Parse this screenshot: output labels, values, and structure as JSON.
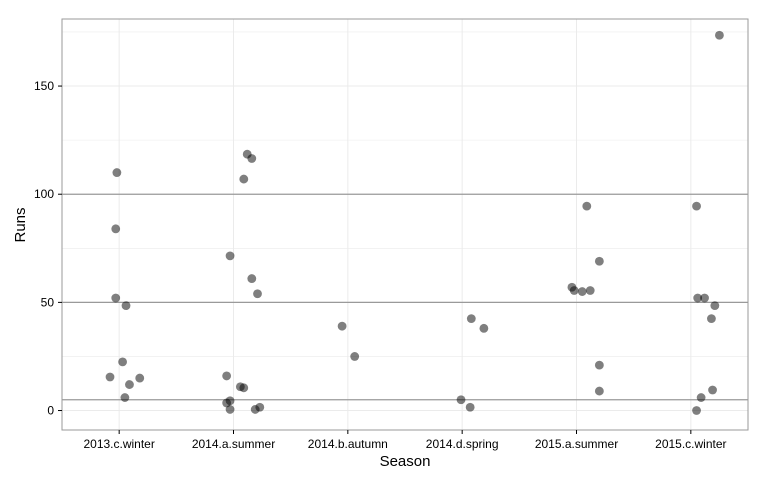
{
  "chart_data": {
    "type": "scatter",
    "title": "",
    "xlabel": "Season",
    "ylabel": "Runs",
    "categories": [
      "2013.c.winter",
      "2014.a.summer",
      "2014.b.autumn",
      "2014.d.spring",
      "2015.a.summer",
      "2015.c.winter"
    ],
    "ylim": [
      -9,
      181
    ],
    "yticks": [
      0,
      50,
      100,
      150
    ],
    "grid": true,
    "legend": "none",
    "reference_lines": [
      5,
      50,
      100
    ],
    "colors": {
      "point": "#000000",
      "point_opacity": 0.5,
      "reference_line": "#9a9a9a",
      "grid": "#ebebeb",
      "panel_border": "#9a9a9a"
    },
    "points": [
      {
        "x": "2013.c.winter",
        "jitter": -0.02,
        "y": 110
      },
      {
        "x": "2013.c.winter",
        "jitter": -0.03,
        "y": 84
      },
      {
        "x": "2013.c.winter",
        "jitter": -0.03,
        "y": 52
      },
      {
        "x": "2013.c.winter",
        "jitter": 0.06,
        "y": 48.5
      },
      {
        "x": "2013.c.winter",
        "jitter": 0.03,
        "y": 22.5
      },
      {
        "x": "2013.c.winter",
        "jitter": -0.08,
        "y": 15.5
      },
      {
        "x": "2013.c.winter",
        "jitter": 0.18,
        "y": 15
      },
      {
        "x": "2013.c.winter",
        "jitter": 0.09,
        "y": 12
      },
      {
        "x": "2013.c.winter",
        "jitter": 0.05,
        "y": 6
      },
      {
        "x": "2014.a.summer",
        "jitter": 0.12,
        "y": 118.5
      },
      {
        "x": "2014.a.summer",
        "jitter": 0.16,
        "y": 116.5
      },
      {
        "x": "2014.a.summer",
        "jitter": 0.09,
        "y": 107
      },
      {
        "x": "2014.a.summer",
        "jitter": -0.03,
        "y": 71.5
      },
      {
        "x": "2014.a.summer",
        "jitter": 0.16,
        "y": 61
      },
      {
        "x": "2014.a.summer",
        "jitter": 0.21,
        "y": 54
      },
      {
        "x": "2014.a.summer",
        "jitter": -0.06,
        "y": 16
      },
      {
        "x": "2014.a.summer",
        "jitter": 0.06,
        "y": 11
      },
      {
        "x": "2014.a.summer",
        "jitter": 0.09,
        "y": 10.5
      },
      {
        "x": "2014.a.summer",
        "jitter": -0.03,
        "y": 4.5
      },
      {
        "x": "2014.a.summer",
        "jitter": -0.06,
        "y": 3.5
      },
      {
        "x": "2014.a.summer",
        "jitter": 0.23,
        "y": 1.5
      },
      {
        "x": "2014.a.summer",
        "jitter": 0.19,
        "y": 0.5
      },
      {
        "x": "2014.a.summer",
        "jitter": -0.03,
        "y": 0.5
      },
      {
        "x": "2014.b.autumn",
        "jitter": -0.05,
        "y": 39
      },
      {
        "x": "2014.b.autumn",
        "jitter": 0.06,
        "y": 25
      },
      {
        "x": "2014.d.spring",
        "jitter": 0.08,
        "y": 42.5
      },
      {
        "x": "2014.d.spring",
        "jitter": 0.19,
        "y": 38
      },
      {
        "x": "2014.d.spring",
        "jitter": -0.01,
        "y": 5
      },
      {
        "x": "2014.d.spring",
        "jitter": 0.07,
        "y": 1.5
      },
      {
        "x": "2015.a.summer",
        "jitter": 0.09,
        "y": 94.5
      },
      {
        "x": "2015.a.summer",
        "jitter": 0.2,
        "y": 69
      },
      {
        "x": "2015.a.summer",
        "jitter": -0.04,
        "y": 57
      },
      {
        "x": "2015.a.summer",
        "jitter": -0.02,
        "y": 55.5
      },
      {
        "x": "2015.a.summer",
        "jitter": 0.05,
        "y": 55
      },
      {
        "x": "2015.a.summer",
        "jitter": 0.12,
        "y": 55.5
      },
      {
        "x": "2015.a.summer",
        "jitter": 0.2,
        "y": 21
      },
      {
        "x": "2015.a.summer",
        "jitter": 0.2,
        "y": 9
      },
      {
        "x": "2015.c.winter",
        "jitter": 0.25,
        "y": 173.5
      },
      {
        "x": "2015.c.winter",
        "jitter": 0.05,
        "y": 94.5
      },
      {
        "x": "2015.c.winter",
        "jitter": 0.06,
        "y": 52
      },
      {
        "x": "2015.c.winter",
        "jitter": 0.12,
        "y": 52
      },
      {
        "x": "2015.c.winter",
        "jitter": 0.21,
        "y": 48.5
      },
      {
        "x": "2015.c.winter",
        "jitter": 0.18,
        "y": 42.5
      },
      {
        "x": "2015.c.winter",
        "jitter": 0.19,
        "y": 9.5
      },
      {
        "x": "2015.c.winter",
        "jitter": 0.09,
        "y": 6
      },
      {
        "x": "2015.c.winter",
        "jitter": 0.05,
        "y": 0
      }
    ]
  }
}
